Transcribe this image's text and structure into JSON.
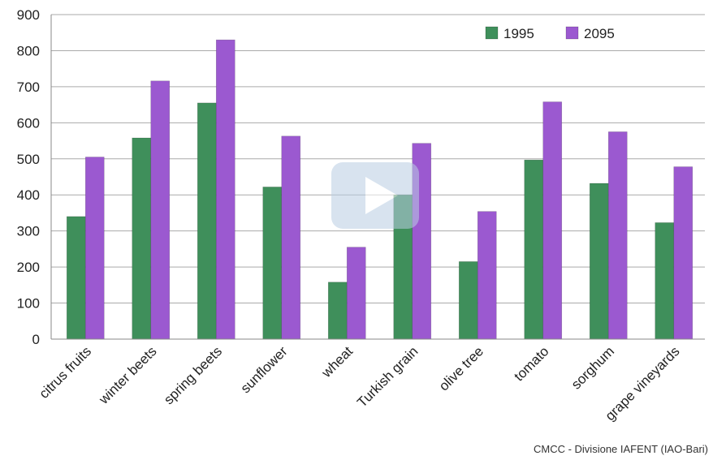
{
  "chart_data": {
    "type": "bar",
    "categories": [
      "citrus fruits",
      "winter beets",
      "spring beets",
      "sunflower",
      "wheat",
      "Turkish grain",
      "olive tree",
      "tomato",
      "sorghum",
      "grape vineyards"
    ],
    "series": [
      {
        "name": "1995",
        "color": "#3f8f5b",
        "values": [
          340,
          558,
          655,
          422,
          158,
          400,
          215,
          497,
          432,
          323
        ]
      },
      {
        "name": "2095",
        "color": "#9b59d0",
        "values": [
          505,
          716,
          830,
          563,
          255,
          543,
          354,
          658,
          575,
          478
        ]
      }
    ],
    "yticks": [
      0,
      100,
      200,
      300,
      400,
      500,
      600,
      700,
      800,
      900
    ],
    "ylim": [
      0,
      900
    ],
    "grid": true,
    "legend_position": "top-right"
  },
  "source_text": "CMCC - Divisione IAFENT (IAO-Bari)"
}
